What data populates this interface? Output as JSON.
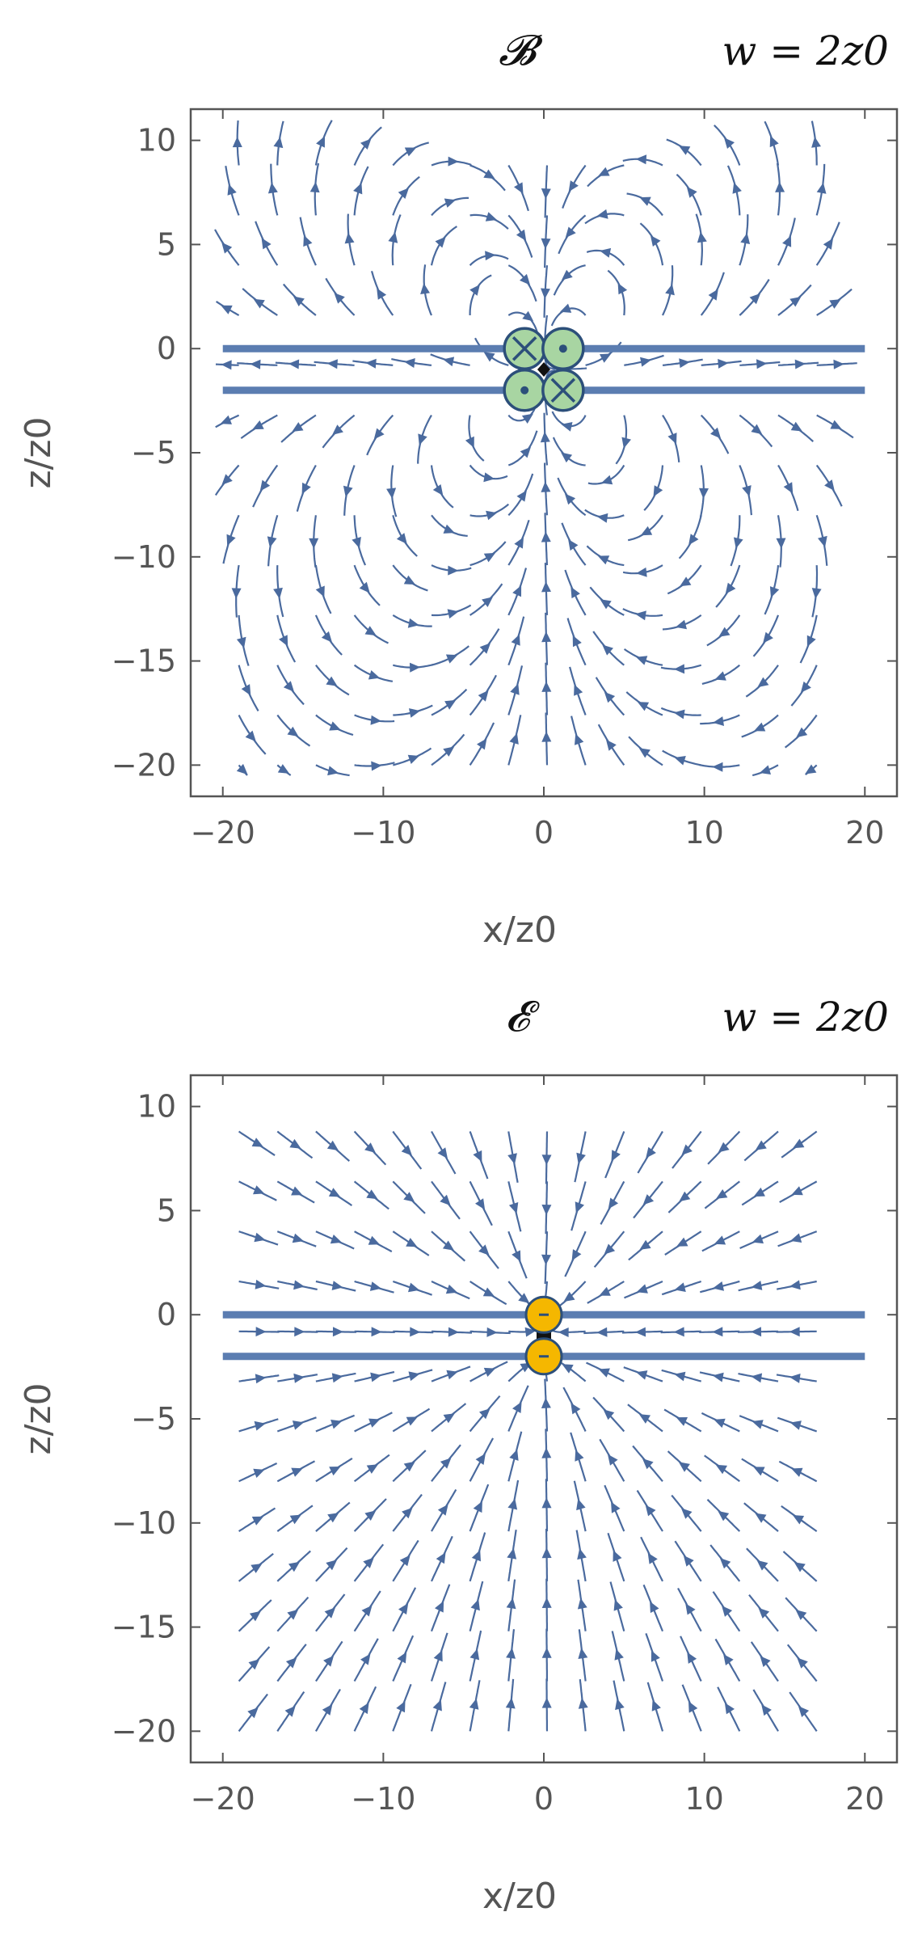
{
  "colors": {
    "streamline": "#4a6a9e",
    "plate": "#5b7db1",
    "current_fill": "#a8d5a2",
    "current_stroke": "#2c4f7a",
    "charge_fill": "#f5b700",
    "frame": "#555555",
    "tick_text": "#555555"
  },
  "chart_data": [
    {
      "type": "streamplot",
      "title": "𝓑",
      "annotation": "w = 2z0",
      "xlabel": "x/z0",
      "ylabel": "z/z0",
      "xlim": [
        -22,
        22
      ],
      "ylim": [
        -21.5,
        11.5
      ],
      "xticks": [
        -20,
        -10,
        0,
        10,
        20
      ],
      "yticks": [
        -20,
        -15,
        -10,
        -5,
        0,
        5,
        10
      ],
      "xtick_labels": [
        "−20",
        "−10",
        "0",
        "10",
        "20"
      ],
      "ytick_labels": [
        "−20",
        "−15",
        "−10",
        "−5",
        "0",
        "5",
        "10"
      ],
      "plates": [
        {
          "z": 0,
          "x_range": [
            -20,
            20
          ]
        },
        {
          "z": -2,
          "x_range": [
            -20,
            20
          ]
        }
      ],
      "sources": [
        {
          "x": -1.2,
          "z": 0,
          "symbol": "into-page"
        },
        {
          "x": 1.2,
          "z": 0,
          "symbol": "out-of-page"
        },
        {
          "x": -1.2,
          "z": -2,
          "symbol": "out-of-page"
        },
        {
          "x": 1.2,
          "z": -2,
          "symbol": "into-page"
        }
      ],
      "center_marker": {
        "x": 0,
        "z": -1
      },
      "field": "magnetic"
    },
    {
      "type": "streamplot",
      "title": "𝓔",
      "annotation": "w = 2z0",
      "xlabel": "x/z0",
      "ylabel": "z/z0",
      "xlim": [
        -22,
        22
      ],
      "ylim": [
        -21.5,
        11.5
      ],
      "xticks": [
        -20,
        -10,
        0,
        10,
        20
      ],
      "yticks": [
        -20,
        -15,
        -10,
        -5,
        0,
        5,
        10
      ],
      "xtick_labels": [
        "−20",
        "−10",
        "0",
        "10",
        "20"
      ],
      "ytick_labels": [
        "−20",
        "−15",
        "−10",
        "−5",
        "0",
        "5",
        "10"
      ],
      "plates": [
        {
          "z": 0,
          "x_range": [
            -20,
            20
          ]
        },
        {
          "z": -2,
          "x_range": [
            -20,
            20
          ]
        }
      ],
      "sources": [
        {
          "x": 0,
          "z": 0,
          "symbol": "minus"
        },
        {
          "x": 0,
          "z": -2,
          "symbol": "minus"
        }
      ],
      "center_marker": {
        "x": 0,
        "z": -1
      },
      "field": "electric"
    }
  ]
}
